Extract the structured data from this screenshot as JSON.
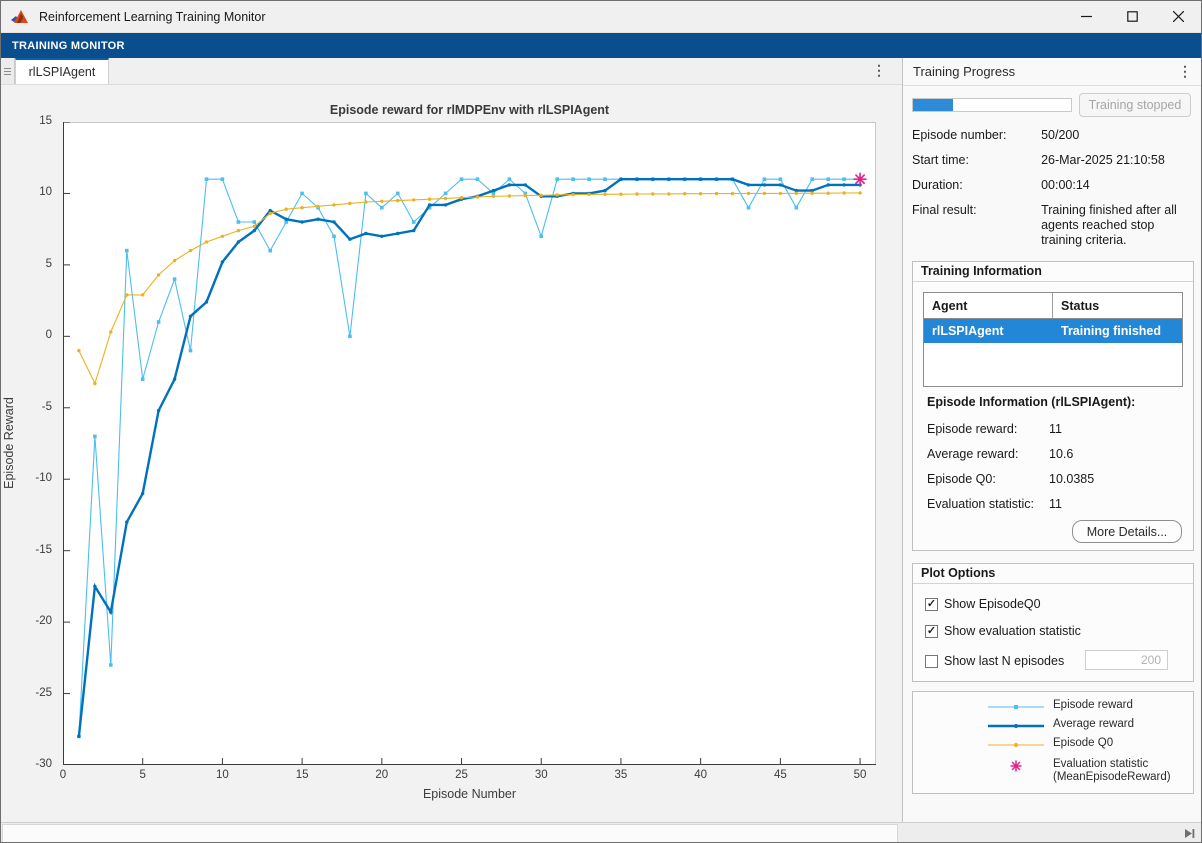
{
  "window": {
    "title": "Reinforcement Learning Training Monitor"
  },
  "toolstrip": {
    "tab_label": "TRAINING MONITOR"
  },
  "doc_tab": {
    "label": "rlLSPIAgent",
    "kebab": "⋮"
  },
  "chart": {
    "title": "Episode reward for rlMDPEnv with rlLSPIAgent",
    "xlabel": "Episode Number",
    "ylabel": "Episode Reward"
  },
  "chart_data": {
    "type": "line",
    "title": "Episode reward for rlMDPEnv with rlLSPIAgent",
    "xlabel": "Episode Number",
    "ylabel": "Episode Reward",
    "xlim": [
      0,
      51
    ],
    "ylim": [
      -30,
      15
    ],
    "xticks": [
      0,
      5,
      10,
      15,
      20,
      25,
      30,
      35,
      40,
      45,
      50
    ],
    "yticks": [
      15,
      10,
      5,
      0,
      -5,
      -10,
      -15,
      -20,
      -25,
      -30
    ],
    "grid": false,
    "legend_position": "separate-panel",
    "x": [
      1,
      2,
      3,
      4,
      5,
      6,
      7,
      8,
      9,
      10,
      11,
      12,
      13,
      14,
      15,
      16,
      17,
      18,
      19,
      20,
      21,
      22,
      23,
      24,
      25,
      26,
      27,
      28,
      29,
      30,
      31,
      32,
      33,
      34,
      35,
      36,
      37,
      38,
      39,
      40,
      41,
      42,
      43,
      44,
      45,
      46,
      47,
      48,
      49,
      50
    ],
    "series": [
      {
        "name": "Episode reward",
        "color": "#4DBEEE",
        "marker": "square",
        "width": 1.1,
        "values": [
          -28,
          -7,
          -23,
          6,
          -3,
          1,
          4,
          -1,
          11,
          11,
          8,
          8,
          6,
          8,
          10,
          9,
          7,
          0,
          10,
          9,
          10,
          8,
          9,
          10,
          11,
          11,
          10,
          11,
          10,
          7,
          11,
          11,
          11,
          11,
          11,
          11,
          11,
          11,
          11,
          11,
          11,
          11,
          9,
          11,
          11,
          9,
          11,
          11,
          11,
          11
        ]
      },
      {
        "name": "Average reward",
        "color": "#0072BD",
        "marker": "dot",
        "width": 2.4,
        "values": [
          -28,
          -17.5,
          -19.3,
          -13,
          -11,
          -5.2,
          -3,
          1.4,
          2.4,
          5.2,
          6.6,
          7.4,
          8.8,
          8.2,
          8,
          8.2,
          8,
          6.8,
          7.2,
          7,
          7.2,
          7.4,
          9.2,
          9.2,
          9.6,
          9.8,
          10.2,
          10.6,
          10.6,
          9.8,
          9.8,
          10,
          10,
          10.2,
          11,
          11,
          11,
          11,
          11,
          11,
          11,
          11,
          10.6,
          10.6,
          10.6,
          10.2,
          10.2,
          10.6,
          10.6,
          10.6
        ]
      },
      {
        "name": "Episode Q0",
        "color": "#EDB120",
        "marker": "dot",
        "width": 1.1,
        "values": [
          -1,
          -3.3,
          0.3,
          2.9,
          2.9,
          4.3,
          5.3,
          6,
          6.6,
          7,
          7.4,
          7.7,
          8.6,
          8.9,
          9,
          9.1,
          9.2,
          9.3,
          9.4,
          9.45,
          9.5,
          9.55,
          9.6,
          9.65,
          9.7,
          9.75,
          9.8,
          9.82,
          9.85,
          9.87,
          9.9,
          9.92,
          9.93,
          9.94,
          9.95,
          9.96,
          9.97,
          9.97,
          9.98,
          9.98,
          9.99,
          9.99,
          10,
          10,
          10,
          10.01,
          10.02,
          10.02,
          10.03,
          10.04
        ]
      },
      {
        "name": "Evaluation statistic (MeanEpisodeReward)",
        "color": "#E0218A",
        "marker": "asterisk",
        "type": "points",
        "points": [
          {
            "episode": 50,
            "value": 11
          }
        ]
      }
    ]
  },
  "progress_panel": {
    "header": "Training Progress",
    "kebab": "⋮",
    "progress_percent": 25,
    "stop_button_label": "Training stopped",
    "rows": [
      {
        "label": "Episode number:",
        "value": "50/200"
      },
      {
        "label": "Start time:",
        "value": "26-Mar-2025 21:10:58"
      },
      {
        "label": "Duration:",
        "value": "00:00:14"
      },
      {
        "label": "Final result:",
        "value": "Training finished after all agents reached stop training criteria."
      }
    ]
  },
  "training_info": {
    "title": "Training Information",
    "table": {
      "headers": [
        "Agent",
        "Status"
      ],
      "rows": [
        {
          "agent": "rlLSPIAgent",
          "status": "Training finished",
          "selected": true
        }
      ]
    },
    "episode_info_title": "Episode Information (rlLSPIAgent):",
    "rows": [
      {
        "label": "Episode reward:",
        "value": "11"
      },
      {
        "label": "Average reward:",
        "value": "10.6"
      },
      {
        "label": "Episode Q0:",
        "value": "10.0385"
      },
      {
        "label": "Evaluation statistic:",
        "value": "11"
      }
    ],
    "more_button_label": "More Details..."
  },
  "plot_options": {
    "title": "Plot Options",
    "items": [
      {
        "label": "Show EpisodeQ0",
        "checked": true
      },
      {
        "label": "Show evaluation statistic",
        "checked": true
      },
      {
        "label": "Show last N episodes",
        "checked": false
      }
    ],
    "n_episodes_value": "200"
  },
  "legend": {
    "items": [
      {
        "label": "Episode reward"
      },
      {
        "label": "Average reward"
      },
      {
        "label": "Episode Q0"
      },
      {
        "label": "Evaluation statistic",
        "label2": "(MeanEpisodeReward)"
      }
    ]
  }
}
